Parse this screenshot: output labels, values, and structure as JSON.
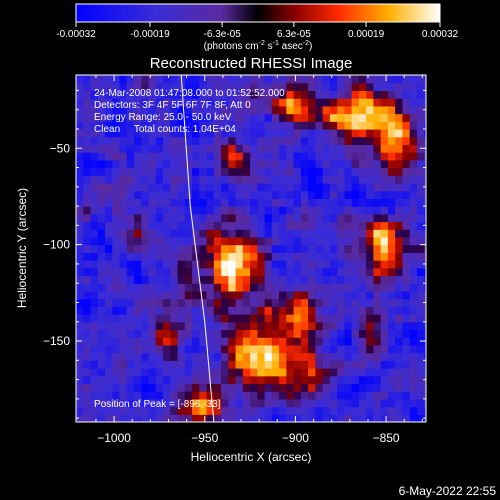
{
  "colorbar": {
    "ticks": [
      "-0.00032",
      "-0.00019",
      "-6.3e-05",
      "6.3e-05",
      "0.00019",
      "0.00032"
    ],
    "tick_values": [
      -0.00032,
      -0.00019,
      -6.3e-05,
      6.3e-05,
      0.00019,
      0.00032
    ],
    "units_main": "(photons cm",
    "units_exp1": "-2",
    "units_mid": " s",
    "units_exp2": "-1",
    "units_mid2": " asec",
    "units_exp3": "-2",
    "units_end": ")"
  },
  "chart_data": {
    "type": "heatmap",
    "title": "Reconstructed RHESSI Image",
    "xlabel": "Heliocentric X (arcsec)",
    "ylabel": "Heliocentric Y (arcsec)",
    "xlim": [
      -1021,
      -828
    ],
    "ylim": [
      -192,
      -12
    ],
    "x_ticks": [
      -1000,
      -950,
      -900,
      -850
    ],
    "x_tick_labels": [
      "−1000",
      "−950",
      "−900",
      "−850"
    ],
    "y_ticks": [
      -50,
      -100,
      -150
    ],
    "y_tick_labels": [
      "−50",
      "−100",
      "−150"
    ],
    "annotations": [
      "24-Mar-2008 01:47:08.000 to 01:52:52.000",
      "Detectors: 3F 4F 5F 6F 7F 8F, Att 0",
      "Energy Range: 25.0 - 50.0 keV",
      "Clean     Total counts: 1.04E+04"
    ],
    "peak_label": "Position of Peak = [-896,-33]",
    "peak": [
      -896,
      -33
    ],
    "limb_curve": [
      [
        -963,
        -12
      ],
      [
        -958,
        -80
      ],
      [
        -950,
        -140
      ],
      [
        -945,
        -192
      ]
    ],
    "sources": [
      {
        "x": -938,
        "y": -112,
        "amp": 1.0,
        "sx": 14,
        "sy": 14
      },
      {
        "x": -922,
        "y": -160,
        "amp": 1.1,
        "sx": 14,
        "sy": 12
      },
      {
        "x": -900,
        "y": -140,
        "amp": 0.7,
        "sx": 10,
        "sy": 10
      },
      {
        "x": -870,
        "y": -35,
        "amp": 0.9,
        "sx": 12,
        "sy": 11
      },
      {
        "x": -904,
        "y": -30,
        "amp": 0.8,
        "sx": 8,
        "sy": 8
      },
      {
        "x": -848,
        "y": -45,
        "amp": 0.9,
        "sx": 8,
        "sy": 12
      },
      {
        "x": -853,
        "y": -105,
        "amp": 0.85,
        "sx": 9,
        "sy": 12
      },
      {
        "x": -935,
        "y": -60,
        "amp": 0.6,
        "sx": 7,
        "sy": 8
      },
      {
        "x": -974,
        "y": -150,
        "amp": 0.6,
        "sx": 7,
        "sy": 6
      },
      {
        "x": -990,
        "y": -95,
        "amp": 0.45,
        "sx": 6,
        "sy": 6
      },
      {
        "x": -986,
        "y": -20,
        "amp": 0.4,
        "sx": 6,
        "sy": 6
      },
      {
        "x": -955,
        "y": -185,
        "amp": 0.9,
        "sx": 8,
        "sy": 6
      },
      {
        "x": -860,
        "y": -150,
        "amp": 0.45,
        "sx": 7,
        "sy": 8
      },
      {
        "x": -890,
        "y": -170,
        "amp": 0.5,
        "sx": 8,
        "sy": 6
      }
    ]
  },
  "footer": {
    "timestamp": "6-May-2022 22:55"
  }
}
